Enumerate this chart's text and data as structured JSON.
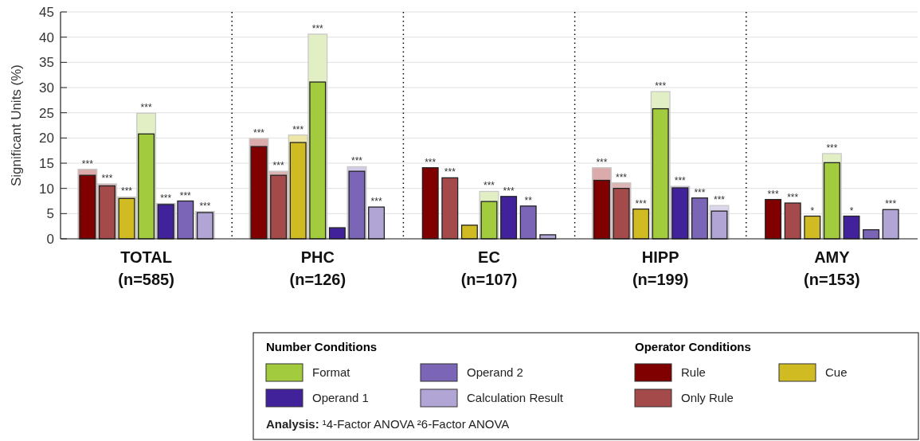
{
  "chart_data": {
    "type": "bar",
    "ylabel": "Significant Units (%)",
    "categories": [
      "TOTAL\n(n=585)",
      "PHC\n(n=126)",
      "EC\n(n=107)",
      "HIPP\n(n=199)",
      "AMY\n(n=153)"
    ],
    "ylim": [
      0,
      45
    ],
    "yticks": [
      0,
      5,
      10,
      15,
      20,
      25,
      30,
      35,
      40,
      45
    ],
    "grid": "y",
    "legend": "bottom",
    "series": [
      {
        "name": "Rule",
        "color": "#800000",
        "values": [
          12.6,
          18.3,
          14.1,
          11.6,
          7.8
        ],
        "value_labels": [
          null,
          null,
          "***",
          null,
          "***"
        ]
      },
      {
        "color": "#dbaaaa",
        "values": [
          13.8,
          19.9,
          null,
          14.1,
          null
        ],
        "value_labels": [
          "***",
          "***",
          null,
          "***",
          null
        ]
      },
      {
        "name": "Only Rule",
        "color": "#a54a4a",
        "values": [
          10.5,
          12.6,
          12.1,
          10.0,
          7.1
        ],
        "value_labels": [
          null,
          null,
          "***",
          null,
          "***"
        ]
      },
      {
        "color": "#ddb4b4",
        "values": [
          10.9,
          13.4,
          null,
          11.1,
          null
        ],
        "value_labels": [
          "***",
          "***",
          null,
          "***",
          null
        ]
      },
      {
        "name": "Cue",
        "color": "#d1bb23",
        "values": [
          8.0,
          19.1,
          2.7,
          5.9,
          4.5
        ],
        "value_labels": [
          null,
          null,
          null,
          "***",
          "*"
        ]
      },
      {
        "color": "#ede6a8",
        "values": [
          8.3,
          20.6,
          null,
          null,
          null
        ],
        "value_labels": [
          "***",
          "***",
          null,
          null,
          null
        ]
      },
      {
        "name": "Format",
        "color": "#a2cb3e",
        "values": [
          20.8,
          31.1,
          7.4,
          25.8,
          15.1
        ]
      },
      {
        "color": "#e2efc4",
        "values": [
          24.9,
          40.6,
          9.4,
          29.2,
          16.9
        ],
        "value_labels": [
          "***",
          "***",
          "***",
          "***",
          "***"
        ]
      },
      {
        "name": "Operand 1",
        "color": "#42229a",
        "values": [
          6.8,
          2.2,
          8.4,
          10.1,
          4.5
        ],
        "value_labels": [
          null,
          null,
          "***",
          null,
          "*"
        ]
      },
      {
        "color": "#c5bde0",
        "values": [
          7.0,
          null,
          null,
          10.4,
          null
        ],
        "value_labels": [
          "***",
          null,
          null,
          "***",
          null
        ]
      },
      {
        "name": "Operand 2",
        "color": "#7b65b6",
        "values": [
          7.5,
          13.4,
          6.5,
          8.1,
          1.8
        ],
        "value_labels": [
          "***",
          null,
          "**",
          "***",
          null
        ]
      },
      {
        "color": "#d3cbe8",
        "values": [
          null,
          14.3,
          null,
          null,
          null
        ],
        "value_labels": [
          null,
          "***",
          null,
          null,
          null
        ]
      },
      {
        "name": "Calculation Result",
        "color": "#b1a5d6",
        "values": [
          5.2,
          6.3,
          0.8,
          5.5,
          5.8
        ],
        "value_labels": [
          null,
          "***",
          null,
          null,
          "***"
        ]
      },
      {
        "color": "#dcd6ec",
        "values": [
          5.4,
          null,
          null,
          6.6,
          null
        ],
        "value_labels": [
          "***",
          null,
          null,
          "***",
          null
        ]
      }
    ],
    "annotations": [
      "Number Conditions",
      "Operator Conditions",
      "Analysis: ¹4-Factor ANOVA ²6-Factor ANOVA"
    ]
  }
}
